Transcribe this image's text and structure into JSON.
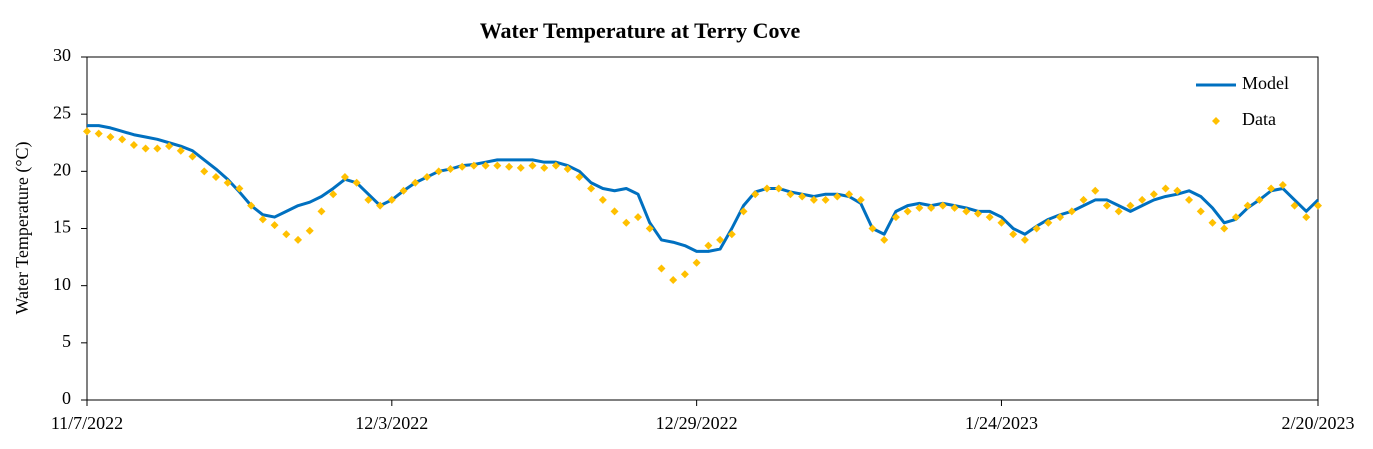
{
  "chart_data": {
    "type": "line",
    "title": "Water Temperature at Terry Cove",
    "y_label": "Water Temperature (°C)",
    "x": [
      "11/7/2022",
      "11/8/2022",
      "11/9/2022",
      "11/10/2022",
      "11/11/2022",
      "11/12/2022",
      "11/13/2022",
      "11/14/2022",
      "11/15/2022",
      "11/16/2022",
      "11/17/2022",
      "11/18/2022",
      "11/19/2022",
      "11/20/2022",
      "11/21/2022",
      "11/22/2022",
      "11/23/2022",
      "11/24/2022",
      "11/25/2022",
      "11/26/2022",
      "11/27/2022",
      "11/28/2022",
      "11/29/2022",
      "11/30/2022",
      "12/1/2022",
      "12/2/2022",
      "12/3/2022",
      "12/4/2022",
      "12/5/2022",
      "12/6/2022",
      "12/7/2022",
      "12/8/2022",
      "12/9/2022",
      "12/10/2022",
      "12/11/2022",
      "12/12/2022",
      "12/13/2022",
      "12/14/2022",
      "12/15/2022",
      "12/16/2022",
      "12/17/2022",
      "12/18/2022",
      "12/19/2022",
      "12/20/2022",
      "12/21/2022",
      "12/22/2022",
      "12/23/2022",
      "12/24/2022",
      "12/25/2022",
      "12/26/2022",
      "12/27/2022",
      "12/28/2022",
      "12/29/2022",
      "12/30/2022",
      "12/31/2022",
      "1/1/2023",
      "1/2/2023",
      "1/3/2023",
      "1/4/2023",
      "1/5/2023",
      "1/6/2023",
      "1/7/2023",
      "1/8/2023",
      "1/9/2023",
      "1/10/2023",
      "1/11/2023",
      "1/12/2023",
      "1/13/2023",
      "1/14/2023",
      "1/15/2023",
      "1/16/2023",
      "1/17/2023",
      "1/18/2023",
      "1/19/2023",
      "1/20/2023",
      "1/21/2023",
      "1/22/2023",
      "1/23/2023",
      "1/24/2023",
      "1/25/2023",
      "1/26/2023",
      "1/27/2023",
      "1/28/2023",
      "1/29/2023",
      "1/30/2023",
      "1/31/2023",
      "2/1/2023",
      "2/2/2023",
      "2/3/2023",
      "2/4/2023",
      "2/5/2023",
      "2/6/2023",
      "2/7/2023",
      "2/8/2023",
      "2/9/2023",
      "2/10/2023",
      "2/11/2023",
      "2/12/2023",
      "2/13/2023",
      "2/14/2023",
      "2/15/2023",
      "2/16/2023",
      "2/17/2023",
      "2/18/2023",
      "2/19/2023",
      "2/20/2023"
    ],
    "series": [
      {
        "name": "Model",
        "style": "line",
        "color": "#0070c0",
        "values": [
          24.0,
          24.0,
          23.8,
          23.5,
          23.2,
          23.0,
          22.8,
          22.5,
          22.2,
          21.8,
          21.0,
          20.2,
          19.3,
          18.2,
          17.0,
          16.2,
          16.0,
          16.5,
          17.0,
          17.3,
          17.8,
          18.5,
          19.3,
          19.0,
          18.0,
          17.0,
          17.5,
          18.3,
          19.0,
          19.5,
          20.0,
          20.2,
          20.5,
          20.6,
          20.8,
          21.0,
          21.0,
          21.0,
          21.0,
          20.8,
          20.8,
          20.5,
          20.0,
          19.0,
          18.5,
          18.3,
          18.5,
          18.0,
          15.5,
          14.0,
          13.8,
          13.5,
          13.0,
          13.0,
          13.2,
          15.0,
          17.0,
          18.2,
          18.5,
          18.5,
          18.2,
          18.0,
          17.8,
          18.0,
          18.0,
          17.8,
          17.2,
          15.0,
          14.5,
          16.5,
          17.0,
          17.2,
          17.0,
          17.2,
          17.0,
          16.8,
          16.5,
          16.5,
          16.0,
          15.0,
          14.5,
          15.2,
          15.8,
          16.2,
          16.5,
          17.0,
          17.5,
          17.5,
          17.0,
          16.5,
          17.0,
          17.5,
          17.8,
          18.0,
          18.3,
          17.8,
          16.8,
          15.5,
          15.8,
          16.8,
          17.5,
          18.3,
          18.5,
          17.5,
          16.5,
          17.5
        ]
      },
      {
        "name": "Data",
        "style": "markers",
        "color": "#ffc000",
        "values": [
          23.5,
          23.3,
          23.0,
          22.8,
          22.3,
          22.0,
          22.0,
          22.2,
          21.8,
          21.3,
          20.0,
          19.5,
          19.0,
          18.5,
          17.0,
          15.8,
          15.3,
          14.5,
          14.0,
          14.8,
          16.5,
          18.0,
          19.5,
          19.0,
          17.5,
          17.0,
          17.5,
          18.3,
          19.0,
          19.5,
          20.0,
          20.2,
          20.4,
          20.5,
          20.5,
          20.5,
          20.4,
          20.3,
          20.5,
          20.3,
          20.5,
          20.2,
          19.5,
          18.5,
          17.5,
          16.5,
          15.5,
          16.0,
          15.0,
          11.5,
          10.5,
          11.0,
          12.0,
          13.5,
          14.0,
          14.5,
          16.5,
          18.0,
          18.5,
          18.5,
          18.0,
          17.8,
          17.5,
          17.5,
          17.8,
          18.0,
          17.5,
          15.0,
          14.0,
          16.0,
          16.5,
          16.8,
          16.8,
          17.0,
          16.8,
          16.5,
          16.3,
          16.0,
          15.5,
          14.5,
          14.0,
          15.0,
          15.5,
          16.0,
          16.5,
          17.5,
          18.3,
          17.0,
          16.5,
          17.0,
          17.5,
          18.0,
          18.5,
          18.3,
          17.5,
          16.5,
          15.5,
          15.0,
          16.0,
          17.0,
          17.5,
          18.5,
          18.8,
          17.0,
          16.0,
          17.0
        ]
      }
    ],
    "xlim": [
      "11/7/2022",
      "2/20/2023"
    ],
    "xticks": [
      "11/7/2022",
      "12/3/2022",
      "12/29/2022",
      "1/24/2023",
      "2/20/2023"
    ],
    "ylim": [
      0,
      30
    ],
    "yticks": [
      0,
      5,
      10,
      15,
      20,
      25,
      30
    ],
    "grid": false,
    "legend": "upper right"
  }
}
